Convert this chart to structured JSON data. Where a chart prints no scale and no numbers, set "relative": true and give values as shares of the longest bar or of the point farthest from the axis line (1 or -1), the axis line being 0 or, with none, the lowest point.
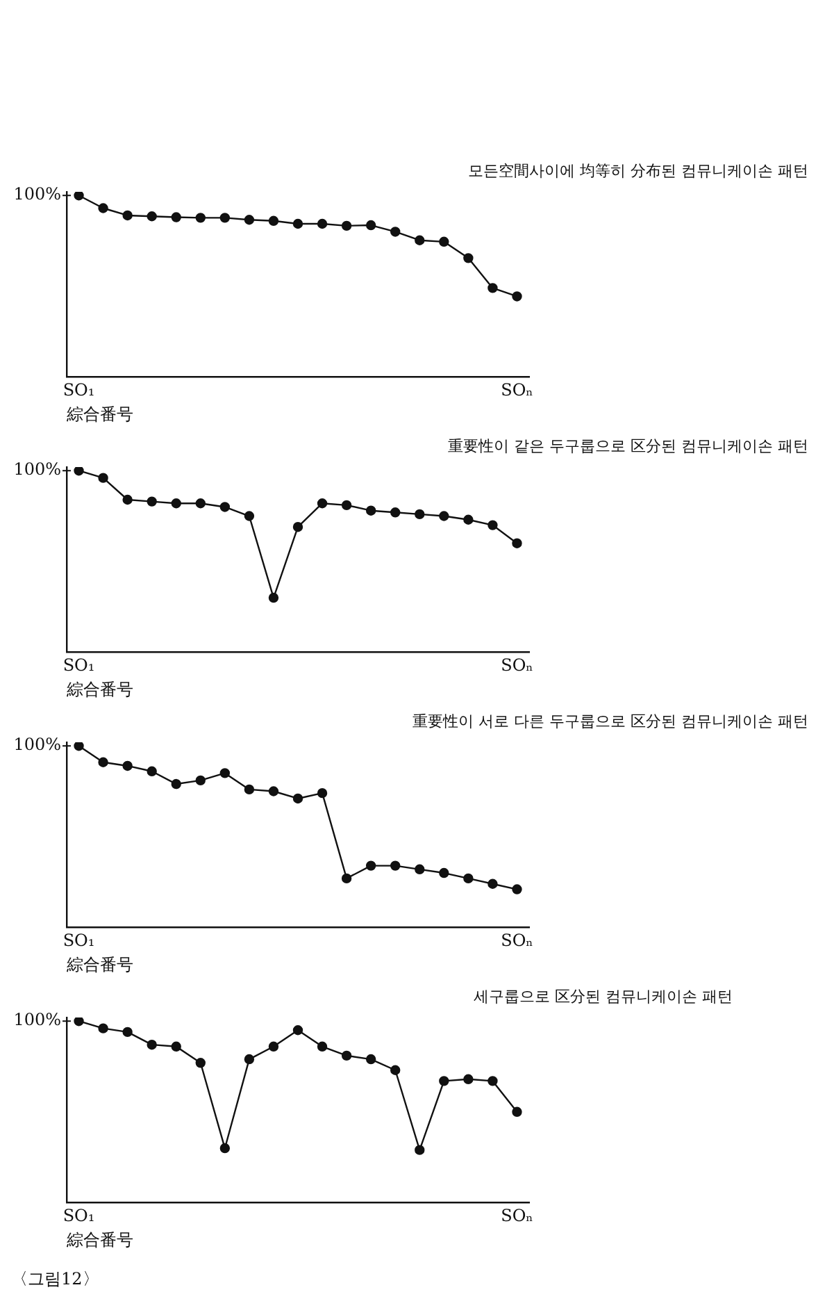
{
  "chart_data": [
    {
      "type": "line",
      "title": "모든空間사이에 均等히 分布된 컴뮤니케이손 패턴",
      "xlabel": "綜合番号",
      "relative": true,
      "marker": "circle",
      "annotations": [
        "100%"
      ],
      "categories": [
        "SO₁",
        null,
        null,
        null,
        null,
        null,
        null,
        null,
        null,
        null,
        null,
        null,
        null,
        null,
        null,
        null,
        null,
        null,
        "SOₙ"
      ],
      "series": [
        {
          "color": "#111111",
          "values": [
            1,
            0.93,
            0.89,
            0.885,
            0.88,
            0.877,
            0.877,
            0.866,
            0.86,
            0.844,
            0.844,
            0.833,
            0.836,
            0.8,
            0.753,
            0.745,
            0.655,
            0.49,
            0.444
          ]
        }
      ]
    },
    {
      "type": "line",
      "title": "重要性이 같은 두구룹으로 区分된 컴뮤니케이손 패턴",
      "xlabel": "綜合番号",
      "relative": true,
      "marker": "circle",
      "annotations": [
        "100%"
      ],
      "categories": [
        "SO₁",
        null,
        null,
        null,
        null,
        null,
        null,
        null,
        null,
        null,
        null,
        null,
        null,
        null,
        null,
        null,
        null,
        null,
        "SOₙ"
      ],
      "series": [
        {
          "color": "#111111",
          "values": [
            1,
            0.96,
            0.84,
            0.83,
            0.82,
            0.82,
            0.8,
            0.75,
            0.3,
            0.69,
            0.82,
            0.81,
            0.78,
            0.77,
            0.76,
            0.75,
            0.73,
            0.7,
            0.6
          ]
        }
      ]
    },
    {
      "type": "line",
      "title": "重要性이 서로 다른 두구룹으로 区分된 컴뮤니케이손 패턴",
      "xlabel": "綜合番号",
      "relative": true,
      "marker": "circle",
      "annotations": [
        "100%"
      ],
      "categories": [
        "SO₁",
        null,
        null,
        null,
        null,
        null,
        null,
        null,
        null,
        null,
        null,
        null,
        null,
        null,
        null,
        null,
        null,
        null,
        "SOₙ"
      ],
      "series": [
        {
          "color": "#111111",
          "values": [
            1,
            0.91,
            0.89,
            0.86,
            0.79,
            0.81,
            0.85,
            0.76,
            0.75,
            0.71,
            0.74,
            0.27,
            0.34,
            0.34,
            0.32,
            0.3,
            0.27,
            0.24,
            0.21
          ]
        }
      ]
    },
    {
      "type": "line",
      "title": "세구룹으로 区分된 컴뮤니케이손 패턴",
      "xlabel": "綜合番号",
      "relative": true,
      "marker": "circle",
      "annotations": [
        "100%",
        "〈그림12〉"
      ],
      "categories": [
        "SO₁",
        null,
        null,
        null,
        null,
        null,
        null,
        null,
        null,
        null,
        null,
        null,
        null,
        null,
        null,
        null,
        null,
        null,
        "SOₙ"
      ],
      "series": [
        {
          "color": "#111111",
          "values": [
            1,
            0.96,
            0.94,
            0.87,
            0.86,
            0.77,
            0.3,
            0.79,
            0.86,
            0.95,
            0.86,
            0.81,
            0.79,
            0.73,
            0.29,
            0.67,
            0.68,
            0.67,
            0.5
          ]
        }
      ]
    }
  ]
}
